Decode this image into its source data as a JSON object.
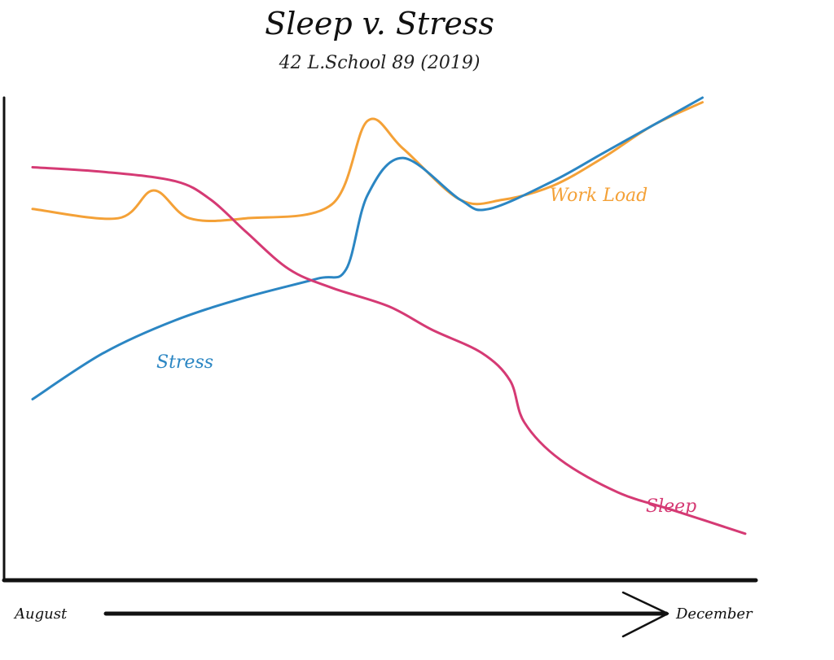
{
  "chart_data": {
    "type": "line",
    "title": "Sleep v. Stress",
    "subtitle": "42 L.School 89 (2019)",
    "x_start_label": "August",
    "x_end_label": "December",
    "xlim": [
      0,
      100
    ],
    "ylim": [
      0,
      100
    ],
    "grid": false,
    "legend": "inline",
    "series": [
      {
        "name": "Work Load",
        "color": "#f4a137",
        "x": [
          0,
          12,
          17,
          22,
          30,
          42,
          47,
          52,
          60,
          66,
          73,
          80,
          87,
          94
        ],
        "y": [
          76,
          74,
          80,
          74,
          74,
          77,
          95,
          89,
          78,
          78,
          81,
          87,
          94,
          99
        ]
      },
      {
        "name": "Stress",
        "color": "#2b86c3",
        "x": [
          0,
          10,
          20,
          30,
          40,
          44,
          47,
          52,
          60,
          64,
          73,
          80,
          87,
          94
        ],
        "y": [
          35,
          45,
          52,
          57,
          61,
          63,
          79,
          87,
          78,
          76,
          82,
          88,
          94,
          100
        ]
      },
      {
        "name": "Sleep",
        "color": "#d53a74",
        "x": [
          0,
          10,
          20,
          25,
          30,
          36,
          42,
          50,
          56,
          63,
          67,
          69,
          74,
          82,
          90,
          100
        ],
        "y": [
          85,
          84,
          82,
          78,
          71,
          63,
          59,
          55,
          50,
          45,
          39,
          30,
          22,
          15,
          11,
          6
        ]
      }
    ]
  }
}
